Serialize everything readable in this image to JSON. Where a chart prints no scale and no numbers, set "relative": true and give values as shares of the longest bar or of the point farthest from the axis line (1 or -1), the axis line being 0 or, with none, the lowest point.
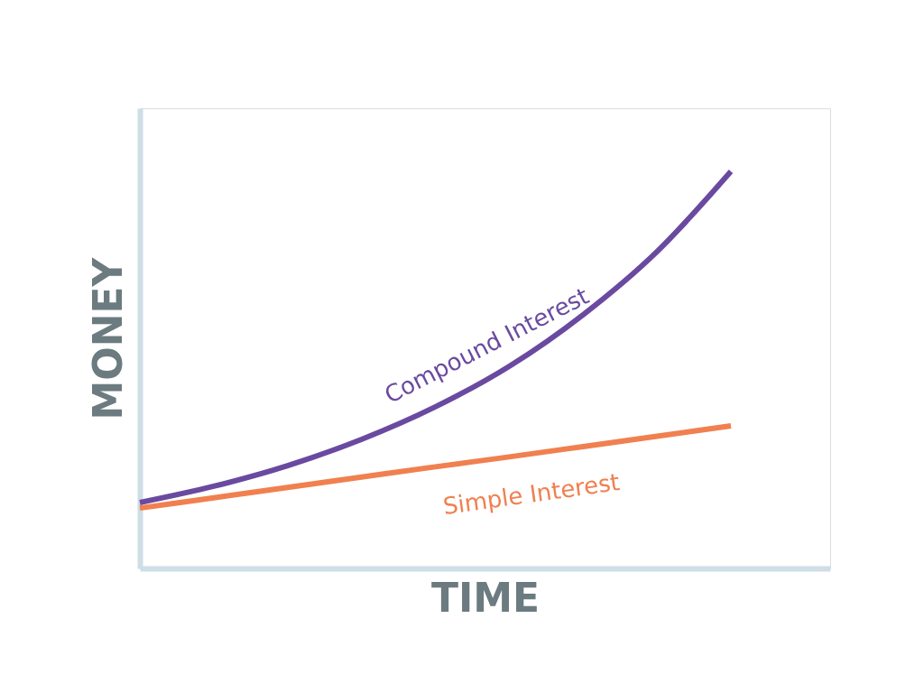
{
  "chart_data": {
    "type": "line",
    "relative": true,
    "xlabel": "TIME",
    "ylabel": "MONEY",
    "categories": [
      null,
      null,
      null,
      null,
      null,
      null,
      null,
      null,
      null
    ],
    "series": [
      {
        "name": "Compound Interest",
        "color": "#6a4aa0",
        "values": [
          0.166,
          0.207,
          0.259,
          0.325,
          0.407,
          0.509,
          0.639,
          0.798,
          1.0
        ]
      },
      {
        "name": "Simple Interest",
        "color": "#f08050",
        "values": [
          0.152,
          0.178,
          0.204,
          0.23,
          0.256,
          0.281,
          0.307,
          0.333,
          0.359
        ]
      }
    ],
    "marker": "none",
    "line_style": "solid"
  }
}
